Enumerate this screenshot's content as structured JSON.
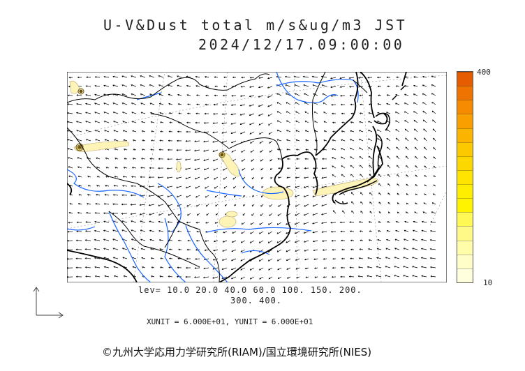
{
  "title": {
    "line1": "U-V&Dust total m/s&ug/m3 JST",
    "line2": "2024/12/17.09:00:00"
  },
  "colorbar": {
    "max_label": "400",
    "min_label": "10",
    "colors": [
      "#e65c00",
      "#ef7300",
      "#f68a00",
      "#f9a000",
      "#fbb500",
      "#fcc800",
      "#fdd800",
      "#fee400",
      "#ffee00",
      "#fff300",
      "#fff855",
      "#fffa88",
      "#fffcaa",
      "#fffdc8",
      "#fffedd"
    ]
  },
  "levels": {
    "line1": "lev= 10.0 20.0 40.0 60.0 100. 150. 200.",
    "line2": "300. 400."
  },
  "units": "XUNIT = 6.000E+01, YUNIT = 6.000E+01",
  "credit": "©九州大学応用力学研究所(RIAM)/国立環境研究所(NIES)",
  "map": {
    "coastline_color": "#000000",
    "river_color": "#1a66ff",
    "dust_fill_color": "#fff4b8",
    "dust_core_color": "#8a6a00"
  }
}
